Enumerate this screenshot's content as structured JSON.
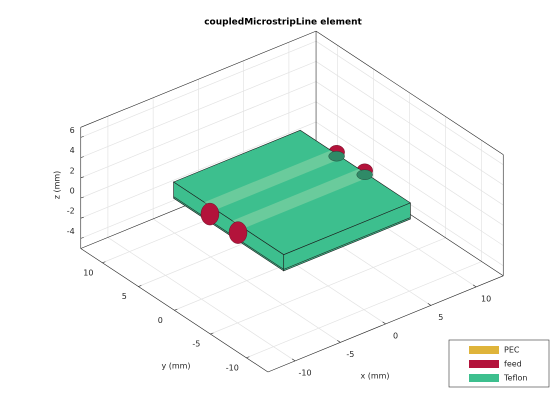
{
  "chart_data": {
    "type": "geometry3d",
    "title": "coupledMicrostripLine element",
    "xlabel": "x (mm)",
    "ylabel": "y (mm)",
    "zlabel": "z (mm)",
    "xlim": [
      -13,
      13
    ],
    "ylim": [
      -13,
      13
    ],
    "zlim": [
      -5,
      7
    ],
    "xticks": [
      -10,
      -5,
      0,
      5,
      10
    ],
    "yticks": [
      -10,
      -5,
      0,
      5,
      10
    ],
    "zticks": [
      -4,
      -2,
      0,
      2,
      4,
      6
    ],
    "grid": true,
    "legend_position": "bottom-right",
    "legend": [
      {
        "name": "PEC",
        "color": "#dfb43a"
      },
      {
        "name": "feed",
        "color": "#b3133b"
      },
      {
        "name": "Teflon",
        "color": "#3dbf8e"
      }
    ]
  }
}
